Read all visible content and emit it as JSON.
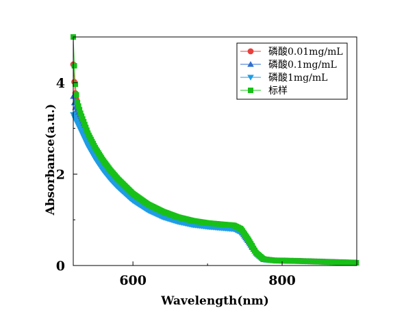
{
  "chart_data": {
    "type": "line",
    "title": "",
    "xlabel": "Wavelength(nm)",
    "ylabel": "Absorbance(a.u.)",
    "xlim": [
      520,
      900
    ],
    "ylim": [
      0,
      5
    ],
    "x_ticks": [
      600,
      800
    ],
    "y_ticks": [
      0,
      2,
      4
    ],
    "grid": false,
    "legend_position": "top-right",
    "series": [
      {
        "name": "磷酸0.01mg/mL",
        "color": "#e8413d",
        "marker": "circle",
        "points": [
          [
            520,
            4.4
          ],
          [
            522,
            3.85
          ],
          [
            525,
            3.55
          ],
          [
            530,
            3.25
          ],
          [
            540,
            2.82
          ],
          [
            550,
            2.5
          ],
          [
            560,
            2.24
          ],
          [
            570,
            2.02
          ],
          [
            580,
            1.83
          ],
          [
            600,
            1.52
          ],
          [
            620,
            1.3
          ],
          [
            640,
            1.14
          ],
          [
            660,
            1.03
          ],
          [
            680,
            0.96
          ],
          [
            700,
            0.91
          ],
          [
            720,
            0.88
          ],
          [
            735,
            0.86
          ],
          [
            745,
            0.78
          ],
          [
            755,
            0.55
          ],
          [
            765,
            0.28
          ],
          [
            775,
            0.14
          ],
          [
            790,
            0.11
          ],
          [
            820,
            0.1
          ],
          [
            860,
            0.08
          ],
          [
            900,
            0.06
          ]
        ]
      },
      {
        "name": "磷酸0.1mg/mL",
        "color": "#2f6fd0",
        "marker": "triangle-up",
        "points": [
          [
            520,
            3.7
          ],
          [
            522,
            3.5
          ],
          [
            525,
            3.35
          ],
          [
            530,
            3.12
          ],
          [
            540,
            2.7
          ],
          [
            550,
            2.4
          ],
          [
            560,
            2.15
          ],
          [
            570,
            1.94
          ],
          [
            580,
            1.76
          ],
          [
            600,
            1.46
          ],
          [
            620,
            1.25
          ],
          [
            640,
            1.1
          ],
          [
            660,
            0.99
          ],
          [
            680,
            0.92
          ],
          [
            700,
            0.88
          ],
          [
            720,
            0.85
          ],
          [
            735,
            0.83
          ],
          [
            745,
            0.75
          ],
          [
            755,
            0.52
          ],
          [
            765,
            0.27
          ],
          [
            775,
            0.13
          ],
          [
            790,
            0.11
          ],
          [
            820,
            0.1
          ],
          [
            860,
            0.08
          ],
          [
            900,
            0.06
          ]
        ]
      },
      {
        "name": "磷酸1mg/mL",
        "color": "#1e9de6",
        "marker": "triangle-down",
        "points": [
          [
            520,
            3.3
          ],
          [
            522,
            3.22
          ],
          [
            525,
            3.12
          ],
          [
            530,
            2.95
          ],
          [
            540,
            2.6
          ],
          [
            550,
            2.32
          ],
          [
            560,
            2.08
          ],
          [
            570,
            1.88
          ],
          [
            580,
            1.71
          ],
          [
            600,
            1.42
          ],
          [
            620,
            1.21
          ],
          [
            640,
            1.06
          ],
          [
            660,
            0.96
          ],
          [
            680,
            0.89
          ],
          [
            700,
            0.85
          ],
          [
            720,
            0.82
          ],
          [
            735,
            0.8
          ],
          [
            745,
            0.72
          ],
          [
            755,
            0.5
          ],
          [
            765,
            0.26
          ],
          [
            775,
            0.13
          ],
          [
            790,
            0.11
          ],
          [
            820,
            0.1
          ],
          [
            860,
            0.08
          ],
          [
            900,
            0.06
          ]
        ]
      },
      {
        "name": "标样",
        "color": "#18c018",
        "marker": "square",
        "points": [
          [
            520,
            5.0
          ],
          [
            522,
            4.1
          ],
          [
            525,
            3.6
          ],
          [
            530,
            3.32
          ],
          [
            540,
            2.88
          ],
          [
            550,
            2.56
          ],
          [
            560,
            2.3
          ],
          [
            570,
            2.08
          ],
          [
            580,
            1.89
          ],
          [
            600,
            1.57
          ],
          [
            620,
            1.34
          ],
          [
            640,
            1.18
          ],
          [
            660,
            1.06
          ],
          [
            680,
            0.98
          ],
          [
            700,
            0.93
          ],
          [
            720,
            0.9
          ],
          [
            735,
            0.88
          ],
          [
            745,
            0.8
          ],
          [
            755,
            0.56
          ],
          [
            765,
            0.28
          ],
          [
            775,
            0.14
          ],
          [
            790,
            0.11
          ],
          [
            820,
            0.1
          ],
          [
            860,
            0.08
          ],
          [
            900,
            0.06
          ]
        ]
      }
    ]
  }
}
